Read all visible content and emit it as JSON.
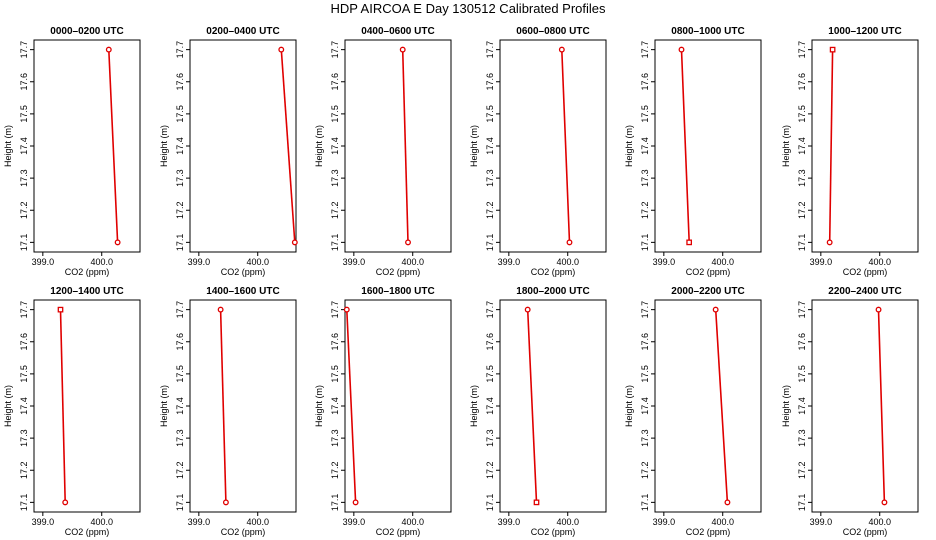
{
  "figure": {
    "title": "HDP AIRCOA E  Day 130512  Calibrated Profiles"
  },
  "colors": {
    "profile": "#e00000",
    "axes": "#000000",
    "background": "#ffffff"
  },
  "chart_data": [
    {
      "type": "line",
      "title": "0000–0200 UTC",
      "xlabel": "CO2 (ppm)",
      "ylabel": "Height (m)",
      "xlim": [
        398.85,
        400.65
      ],
      "ylim": [
        17.07,
        17.73
      ],
      "xticks": [
        399.0,
        400.0
      ],
      "xtick_labels": [
        "399.0",
        "400.0"
      ],
      "yticks": [
        17.1,
        17.2,
        17.3,
        17.4,
        17.5,
        17.6,
        17.7
      ],
      "ytick_labels": [
        "17.1",
        "17.2",
        "17.3",
        "17.4",
        "17.5",
        "17.6",
        "17.7"
      ],
      "series": [
        {
          "x": [
            400.12,
            400.27
          ],
          "y": [
            17.7,
            17.1
          ],
          "markers": [
            "circle",
            "circle"
          ]
        }
      ]
    },
    {
      "type": "line",
      "title": "0200–0400 UTC",
      "xlabel": "CO2 (ppm)",
      "ylabel": "Height (m)",
      "xlim": [
        398.85,
        400.65
      ],
      "ylim": [
        17.07,
        17.73
      ],
      "xticks": [
        399.0,
        400.0
      ],
      "xtick_labels": [
        "399.0",
        "400.0"
      ],
      "yticks": [
        17.1,
        17.2,
        17.3,
        17.4,
        17.5,
        17.6,
        17.7
      ],
      "ytick_labels": [
        "17.1",
        "17.2",
        "17.3",
        "17.4",
        "17.5",
        "17.6",
        "17.7"
      ],
      "series": [
        {
          "x": [
            400.4,
            400.63
          ],
          "y": [
            17.7,
            17.1
          ],
          "markers": [
            "circle",
            "circle"
          ]
        }
      ]
    },
    {
      "type": "line",
      "title": "0400–0600 UTC",
      "xlabel": "CO2 (ppm)",
      "ylabel": "Height (m)",
      "xlim": [
        398.85,
        400.65
      ],
      "ylim": [
        17.07,
        17.73
      ],
      "xticks": [
        399.0,
        400.0
      ],
      "xtick_labels": [
        "399.0",
        "400.0"
      ],
      "yticks": [
        17.1,
        17.2,
        17.3,
        17.4,
        17.5,
        17.6,
        17.7
      ],
      "ytick_labels": [
        "17.1",
        "17.2",
        "17.3",
        "17.4",
        "17.5",
        "17.6",
        "17.7"
      ],
      "series": [
        {
          "x": [
            399.83,
            399.92
          ],
          "y": [
            17.7,
            17.1
          ],
          "markers": [
            "circle",
            "circle"
          ]
        }
      ]
    },
    {
      "type": "line",
      "title": "0600–0800 UTC",
      "xlabel": "CO2 (ppm)",
      "ylabel": "Height (m)",
      "xlim": [
        398.85,
        400.65
      ],
      "ylim": [
        17.07,
        17.73
      ],
      "xticks": [
        399.0,
        400.0
      ],
      "xtick_labels": [
        "399.0",
        "400.0"
      ],
      "yticks": [
        17.1,
        17.2,
        17.3,
        17.4,
        17.5,
        17.6,
        17.7
      ],
      "ytick_labels": [
        "17.1",
        "17.2",
        "17.3",
        "17.4",
        "17.5",
        "17.6",
        "17.7"
      ],
      "series": [
        {
          "x": [
            399.9,
            400.03
          ],
          "y": [
            17.7,
            17.1
          ],
          "markers": [
            "circle",
            "circle"
          ]
        }
      ]
    },
    {
      "type": "line",
      "title": "0800–1000 UTC",
      "xlabel": "CO2 (ppm)",
      "ylabel": "Height (m)",
      "xlim": [
        398.85,
        400.65
      ],
      "ylim": [
        17.07,
        17.73
      ],
      "xticks": [
        399.0,
        400.0
      ],
      "xtick_labels": [
        "399.0",
        "400.0"
      ],
      "yticks": [
        17.1,
        17.2,
        17.3,
        17.4,
        17.5,
        17.6,
        17.7
      ],
      "ytick_labels": [
        "17.1",
        "17.2",
        "17.3",
        "17.4",
        "17.5",
        "17.6",
        "17.7"
      ],
      "series": [
        {
          "x": [
            399.3,
            399.43
          ],
          "y": [
            17.7,
            17.1
          ],
          "markers": [
            "circle",
            "square"
          ]
        }
      ]
    },
    {
      "type": "line",
      "title": "1000–1200 UTC",
      "xlabel": "CO2 (ppm)",
      "ylabel": "Height (m)",
      "xlim": [
        398.85,
        400.65
      ],
      "ylim": [
        17.07,
        17.73
      ],
      "xticks": [
        399.0,
        400.0
      ],
      "xtick_labels": [
        "399.0",
        "400.0"
      ],
      "yticks": [
        17.1,
        17.2,
        17.3,
        17.4,
        17.5,
        17.6,
        17.7
      ],
      "ytick_labels": [
        "17.1",
        "17.2",
        "17.3",
        "17.4",
        "17.5",
        "17.6",
        "17.7"
      ],
      "series": [
        {
          "x": [
            399.2,
            399.15
          ],
          "y": [
            17.7,
            17.1
          ],
          "markers": [
            "square",
            "circle"
          ]
        }
      ]
    },
    {
      "type": "line",
      "title": "1200–1400 UTC",
      "xlabel": "CO2 (ppm)",
      "ylabel": "Height (m)",
      "xlim": [
        398.85,
        400.65
      ],
      "ylim": [
        17.07,
        17.73
      ],
      "xticks": [
        399.0,
        400.0
      ],
      "xtick_labels": [
        "399.0",
        "400.0"
      ],
      "yticks": [
        17.1,
        17.2,
        17.3,
        17.4,
        17.5,
        17.6,
        17.7
      ],
      "ytick_labels": [
        "17.1",
        "17.2",
        "17.3",
        "17.4",
        "17.5",
        "17.6",
        "17.7"
      ],
      "series": [
        {
          "x": [
            399.3,
            399.38
          ],
          "y": [
            17.7,
            17.1
          ],
          "markers": [
            "square",
            "circle"
          ]
        }
      ]
    },
    {
      "type": "line",
      "title": "1400–1600 UTC",
      "xlabel": "CO2 (ppm)",
      "ylabel": "Height (m)",
      "xlim": [
        398.85,
        400.65
      ],
      "ylim": [
        17.07,
        17.73
      ],
      "xticks": [
        399.0,
        400.0
      ],
      "xtick_labels": [
        "399.0",
        "400.0"
      ],
      "yticks": [
        17.1,
        17.2,
        17.3,
        17.4,
        17.5,
        17.6,
        17.7
      ],
      "ytick_labels": [
        "17.1",
        "17.2",
        "17.3",
        "17.4",
        "17.5",
        "17.6",
        "17.7"
      ],
      "series": [
        {
          "x": [
            399.37,
            399.46
          ],
          "y": [
            17.7,
            17.1
          ],
          "markers": [
            "circle",
            "circle"
          ]
        }
      ]
    },
    {
      "type": "line",
      "title": "1600–1800 UTC",
      "xlabel": "CO2 (ppm)",
      "ylabel": "Height (m)",
      "xlim": [
        398.85,
        400.65
      ],
      "ylim": [
        17.07,
        17.73
      ],
      "xticks": [
        399.0,
        400.0
      ],
      "xtick_labels": [
        "399.0",
        "400.0"
      ],
      "yticks": [
        17.1,
        17.2,
        17.3,
        17.4,
        17.5,
        17.6,
        17.7
      ],
      "ytick_labels": [
        "17.1",
        "17.2",
        "17.3",
        "17.4",
        "17.5",
        "17.6",
        "17.7"
      ],
      "series": [
        {
          "x": [
            398.88,
            399.03
          ],
          "y": [
            17.7,
            17.1
          ],
          "markers": [
            "circle",
            "circle"
          ]
        }
      ]
    },
    {
      "type": "line",
      "title": "1800–2000 UTC",
      "xlabel": "CO2 (ppm)",
      "ylabel": "Height (m)",
      "xlim": [
        398.85,
        400.65
      ],
      "ylim": [
        17.07,
        17.73
      ],
      "xticks": [
        399.0,
        400.0
      ],
      "xtick_labels": [
        "399.0",
        "400.0"
      ],
      "yticks": [
        17.1,
        17.2,
        17.3,
        17.4,
        17.5,
        17.6,
        17.7
      ],
      "ytick_labels": [
        "17.1",
        "17.2",
        "17.3",
        "17.4",
        "17.5",
        "17.6",
        "17.7"
      ],
      "series": [
        {
          "x": [
            399.32,
            399.47
          ],
          "y": [
            17.7,
            17.1
          ],
          "markers": [
            "circle",
            "square"
          ]
        }
      ]
    },
    {
      "type": "line",
      "title": "2000–2200 UTC",
      "xlabel": "CO2 (ppm)",
      "ylabel": "Height (m)",
      "xlim": [
        398.85,
        400.65
      ],
      "ylim": [
        17.07,
        17.73
      ],
      "xticks": [
        399.0,
        400.0
      ],
      "xtick_labels": [
        "399.0",
        "400.0"
      ],
      "yticks": [
        17.1,
        17.2,
        17.3,
        17.4,
        17.5,
        17.6,
        17.7
      ],
      "ytick_labels": [
        "17.1",
        "17.2",
        "17.3",
        "17.4",
        "17.5",
        "17.6",
        "17.7"
      ],
      "series": [
        {
          "x": [
            399.88,
            400.08
          ],
          "y": [
            17.7,
            17.1
          ],
          "markers": [
            "circle",
            "circle"
          ]
        }
      ]
    },
    {
      "type": "line",
      "title": "2200–2400 UTC",
      "xlabel": "CO2 (ppm)",
      "ylabel": "Height (m)",
      "xlim": [
        398.85,
        400.65
      ],
      "ylim": [
        17.07,
        17.73
      ],
      "xticks": [
        399.0,
        400.0
      ],
      "xtick_labels": [
        "399.0",
        "400.0"
      ],
      "yticks": [
        17.1,
        17.2,
        17.3,
        17.4,
        17.5,
        17.6,
        17.7
      ],
      "ytick_labels": [
        "17.1",
        "17.2",
        "17.3",
        "17.4",
        "17.5",
        "17.6",
        "17.7"
      ],
      "series": [
        {
          "x": [
            399.98,
            400.08
          ],
          "y": [
            17.7,
            17.1
          ],
          "markers": [
            "circle",
            "circle"
          ]
        }
      ]
    }
  ]
}
